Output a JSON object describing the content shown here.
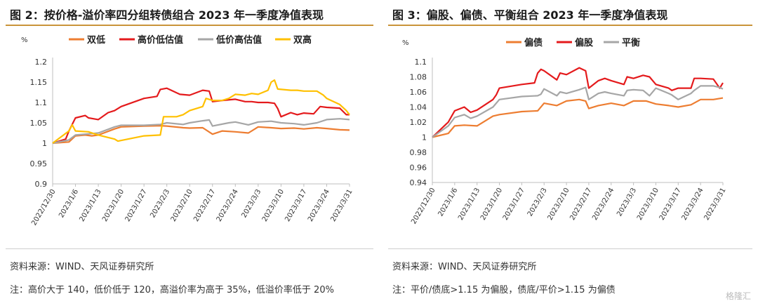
{
  "left": {
    "title": "图 2：按价格-溢价率四分组转债组合 2023 年一季度净值表现",
    "source": "资料来源：WIND、天风证券研究所",
    "note": "注：高价大于 140，低价低于 120，高溢价率为高于 35%，低溢价率低于 20%"
  },
  "right": {
    "title": "图 3：偏股、偏债、平衡组合 2023 年一季度净值表现",
    "source": "资料来源：WIND、天风证券研究所",
    "note": "注：平价/债底>1.15 为偏股，债底/平价>1.15 为偏债"
  },
  "watermark": "格隆汇",
  "chart_data": [
    {
      "type": "line",
      "title": "",
      "unit_label": "%",
      "ylim": [
        0.9,
        1.2
      ],
      "yticks": [
        "0.9",
        "0.95",
        "1",
        "1.05",
        "1.1",
        "1.15",
        "1.2"
      ],
      "ytick_values": [
        0.9,
        0.95,
        1,
        1.05,
        1.1,
        1.15,
        1.2
      ],
      "grid": false,
      "legend": "top",
      "x_start": "2022/12/30",
      "x_end": "2023/3/31",
      "xticks": [
        "2022/12/30",
        "2023/1/6",
        "2023/1/13",
        "2023/1/20",
        "2023/1/27",
        "2023/2/3",
        "2023/2/10",
        "2023/2/17",
        "2023/2/24",
        "2023/3/3",
        "2023/3/10",
        "2023/3/17",
        "2023/3/24",
        "2023/3/31"
      ],
      "series": [
        {
          "name": "双低",
          "color": "#ed7d31",
          "x": [
            "2022/12/30",
            "2023/1/4",
            "2023/1/6",
            "2023/1/9",
            "2023/1/11",
            "2023/1/13",
            "2023/1/18",
            "2023/1/20",
            "2023/1/27",
            "2023/2/1",
            "2023/2/3",
            "2023/2/8",
            "2023/2/10",
            "2023/2/14",
            "2023/2/17",
            "2023/2/20",
            "2023/2/24",
            "2023/2/28",
            "2023/3/3",
            "2023/3/7",
            "2023/3/10",
            "2023/3/14",
            "2023/3/17",
            "2023/3/21",
            "2023/3/24",
            "2023/3/28",
            "2023/3/31"
          ],
          "values": [
            1.0,
            1.003,
            1.018,
            1.02,
            1.018,
            1.02,
            1.035,
            1.04,
            1.042,
            1.043,
            1.042,
            1.038,
            1.037,
            1.038,
            1.022,
            1.03,
            1.028,
            1.025,
            1.04,
            1.038,
            1.036,
            1.037,
            1.035,
            1.038,
            1.036,
            1.033,
            1.032
          ]
        },
        {
          "name": "高价低估值",
          "color": "#e41a1c",
          "x": [
            "2022/12/30",
            "2023/1/3",
            "2023/1/4",
            "2023/1/6",
            "2023/1/9",
            "2023/1/10",
            "2023/1/13",
            "2023/1/16",
            "2023/1/18",
            "2023/1/20",
            "2023/1/27",
            "2023/1/31",
            "2023/2/1",
            "2023/2/3",
            "2023/2/7",
            "2023/2/10",
            "2023/2/14",
            "2023/2/16",
            "2023/2/17",
            "2023/2/20",
            "2023/2/24",
            "2023/2/27",
            "2023/3/1",
            "2023/3/3",
            "2023/3/6",
            "2023/3/8",
            "2023/3/9",
            "2023/3/10",
            "2023/3/13",
            "2023/3/15",
            "2023/3/17",
            "2023/3/20",
            "2023/3/22",
            "2023/3/24",
            "2023/3/28",
            "2023/3/30",
            "2023/3/31"
          ],
          "values": [
            1.0,
            1.01,
            1.03,
            1.062,
            1.068,
            1.062,
            1.058,
            1.075,
            1.08,
            1.09,
            1.11,
            1.115,
            1.132,
            1.135,
            1.12,
            1.118,
            1.13,
            1.128,
            1.102,
            1.105,
            1.108,
            1.102,
            1.102,
            1.1,
            1.1,
            1.098,
            1.085,
            1.065,
            1.075,
            1.07,
            1.074,
            1.072,
            1.09,
            1.088,
            1.086,
            1.07,
            1.07
          ]
        },
        {
          "name": "低价高估值",
          "color": "#a6a6a6",
          "x": [
            "2022/12/30",
            "2023/1/4",
            "2023/1/6",
            "2023/1/9",
            "2023/1/13",
            "2023/1/18",
            "2023/1/20",
            "2023/1/27",
            "2023/2/1",
            "2023/2/3",
            "2023/2/8",
            "2023/2/10",
            "2023/2/14",
            "2023/2/16",
            "2023/2/17",
            "2023/2/22",
            "2023/2/24",
            "2023/2/28",
            "2023/3/3",
            "2023/3/7",
            "2023/3/10",
            "2023/3/14",
            "2023/3/17",
            "2023/3/21",
            "2023/3/24",
            "2023/3/28",
            "2023/3/31"
          ],
          "values": [
            1.0,
            1.008,
            1.02,
            1.022,
            1.025,
            1.04,
            1.044,
            1.044,
            1.046,
            1.05,
            1.046,
            1.05,
            1.055,
            1.057,
            1.042,
            1.05,
            1.052,
            1.045,
            1.052,
            1.054,
            1.05,
            1.048,
            1.045,
            1.05,
            1.058,
            1.06,
            1.058
          ]
        },
        {
          "name": "双高",
          "color": "#ffc000",
          "x": [
            "2022/12/30",
            "2023/1/4",
            "2023/1/5",
            "2023/1/6",
            "2023/1/10",
            "2023/1/13",
            "2023/1/18",
            "2023/1/19",
            "2023/1/27",
            "2023/2/1",
            "2023/2/2",
            "2023/2/6",
            "2023/2/8",
            "2023/2/10",
            "2023/2/14",
            "2023/2/15",
            "2023/2/17",
            "2023/2/20",
            "2023/2/22",
            "2023/2/24",
            "2023/2/27",
            "2023/3/1",
            "2023/3/3",
            "2023/3/6",
            "2023/3/7",
            "2023/3/8",
            "2023/3/9",
            "2023/3/13",
            "2023/3/15",
            "2023/3/17",
            "2023/3/21",
            "2023/3/23",
            "2023/3/24",
            "2023/3/28",
            "2023/3/30",
            "2023/3/31"
          ],
          "values": [
            1.0,
            1.03,
            1.045,
            1.03,
            1.028,
            1.02,
            1.01,
            1.005,
            1.018,
            1.02,
            1.065,
            1.065,
            1.07,
            1.08,
            1.09,
            1.11,
            1.105,
            1.105,
            1.11,
            1.12,
            1.118,
            1.122,
            1.12,
            1.13,
            1.15,
            1.155,
            1.133,
            1.13,
            1.13,
            1.128,
            1.128,
            1.118,
            1.11,
            1.095,
            1.08,
            1.07
          ]
        }
      ]
    },
    {
      "type": "line",
      "title": "",
      "unit_label": "%",
      "ylim": [
        0.94,
        1.1
      ],
      "yticks": [
        "0.94",
        "0.96",
        "0.98",
        "1",
        "1.02",
        "1.04",
        "1.06",
        "1.08",
        "1.1"
      ],
      "ytick_values": [
        0.94,
        0.96,
        0.98,
        1,
        1.02,
        1.04,
        1.06,
        1.08,
        1.1
      ],
      "grid": false,
      "legend": "top",
      "x_start": "2022/12/30",
      "x_end": "2023/3/31",
      "xticks": [
        "2022/12/30",
        "2023/1/6",
        "2023/1/13",
        "2023/1/20",
        "2023/1/27",
        "2023/2/3",
        "2023/2/10",
        "2023/2/17",
        "2023/2/24",
        "2023/3/3",
        "2023/3/10",
        "2023/3/17",
        "2023/3/24",
        "2023/3/31"
      ],
      "series": [
        {
          "name": "偏债",
          "color": "#ed7d31",
          "x": [
            "2022/12/30",
            "2023/1/4",
            "2023/1/6",
            "2023/1/9",
            "2023/1/13",
            "2023/1/18",
            "2023/1/20",
            "2023/1/27",
            "2023/2/1",
            "2023/2/3",
            "2023/2/7",
            "2023/2/10",
            "2023/2/14",
            "2023/2/16",
            "2023/2/17",
            "2023/2/20",
            "2023/2/24",
            "2023/2/28",
            "2023/3/3",
            "2023/3/7",
            "2023/3/10",
            "2023/3/14",
            "2023/3/17",
            "2023/3/21",
            "2023/3/24",
            "2023/3/28",
            "2023/3/31"
          ],
          "values": [
            1.0,
            1.005,
            1.015,
            1.016,
            1.015,
            1.028,
            1.03,
            1.034,
            1.035,
            1.045,
            1.042,
            1.048,
            1.05,
            1.048,
            1.038,
            1.042,
            1.045,
            1.042,
            1.048,
            1.048,
            1.044,
            1.042,
            1.04,
            1.043,
            1.05,
            1.05,
            1.052
          ]
        },
        {
          "name": "偏股",
          "color": "#e41a1c",
          "x": [
            "2022/12/30",
            "2023/1/4",
            "2023/1/6",
            "2023/1/9",
            "2023/1/11",
            "2023/1/13",
            "2023/1/18",
            "2023/1/19",
            "2023/1/20",
            "2023/1/27",
            "2023/1/31",
            "2023/2/1",
            "2023/2/2",
            "2023/2/3",
            "2023/2/7",
            "2023/2/8",
            "2023/2/10",
            "2023/2/14",
            "2023/2/15",
            "2023/2/16",
            "2023/2/17",
            "2023/2/20",
            "2023/2/22",
            "2023/2/24",
            "2023/2/28",
            "2023/3/1",
            "2023/3/3",
            "2023/3/6",
            "2023/3/8",
            "2023/3/10",
            "2023/3/14",
            "2023/3/15",
            "2023/3/17",
            "2023/3/21",
            "2023/3/22",
            "2023/3/24",
            "2023/3/28",
            "2023/3/30",
            "2023/3/31"
          ],
          "values": [
            1.0,
            1.02,
            1.035,
            1.04,
            1.033,
            1.036,
            1.05,
            1.056,
            1.065,
            1.07,
            1.072,
            1.085,
            1.09,
            1.088,
            1.076,
            1.085,
            1.083,
            1.092,
            1.09,
            1.088,
            1.065,
            1.075,
            1.078,
            1.075,
            1.07,
            1.08,
            1.078,
            1.082,
            1.08,
            1.07,
            1.065,
            1.062,
            1.065,
            1.065,
            1.078,
            1.078,
            1.077,
            1.065,
            1.072
          ]
        },
        {
          "name": "平衡",
          "color": "#a6a6a6",
          "x": [
            "2022/12/30",
            "2023/1/4",
            "2023/1/6",
            "2023/1/9",
            "2023/1/11",
            "2023/1/13",
            "2023/1/18",
            "2023/1/20",
            "2023/1/27",
            "2023/2/1",
            "2023/2/2",
            "2023/2/3",
            "2023/2/7",
            "2023/2/8",
            "2023/2/10",
            "2023/2/14",
            "2023/2/16",
            "2023/2/17",
            "2023/2/20",
            "2023/2/22",
            "2023/2/24",
            "2023/2/28",
            "2023/3/1",
            "2023/3/3",
            "2023/3/6",
            "2023/3/8",
            "2023/3/10",
            "2023/3/14",
            "2023/3/15",
            "2023/3/17",
            "2023/3/21",
            "2023/3/22",
            "2023/3/24",
            "2023/3/28",
            "2023/3/30",
            "2023/3/31"
          ],
          "values": [
            1.0,
            1.015,
            1.026,
            1.03,
            1.025,
            1.028,
            1.04,
            1.05,
            1.054,
            1.055,
            1.057,
            1.064,
            1.055,
            1.06,
            1.058,
            1.063,
            1.066,
            1.05,
            1.058,
            1.06,
            1.058,
            1.055,
            1.062,
            1.063,
            1.062,
            1.055,
            1.065,
            1.058,
            1.056,
            1.05,
            1.058,
            1.062,
            1.068,
            1.068,
            1.066,
            1.064
          ]
        }
      ]
    }
  ]
}
